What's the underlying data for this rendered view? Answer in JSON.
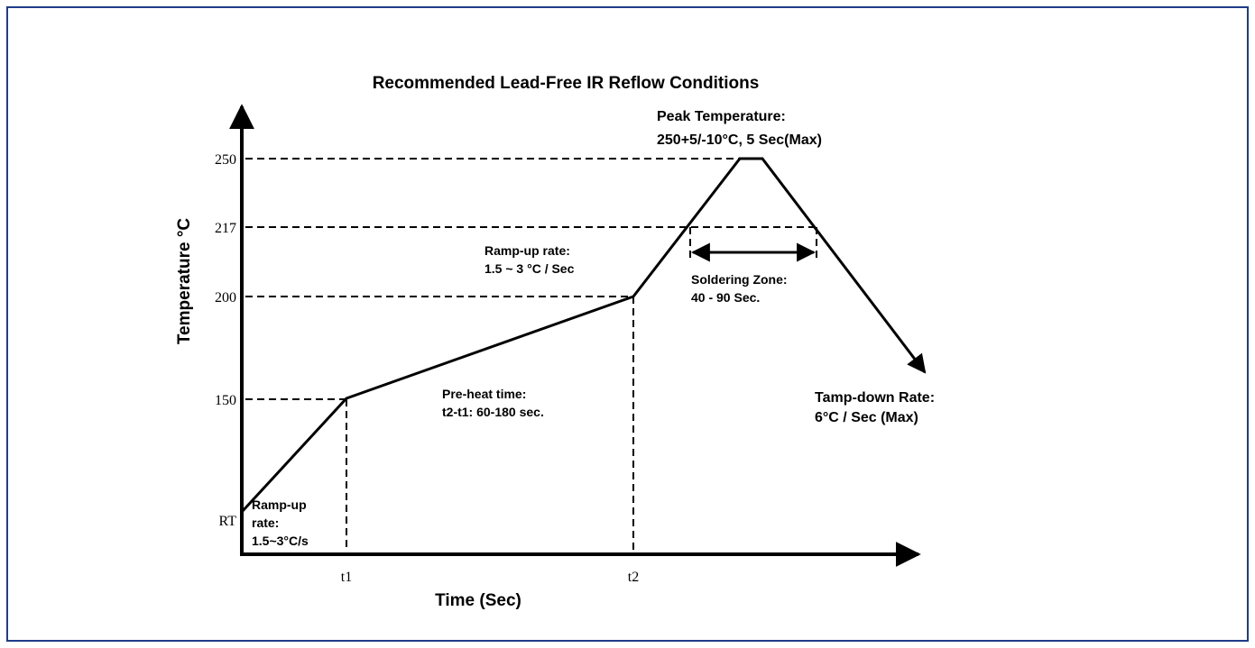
{
  "title": "Recommended Lead-Free IR Reflow Conditions",
  "axes": {
    "y_label": "Temperature °C",
    "x_label": "Time (Sec)",
    "y_ticks": [
      "250",
      "217",
      "200",
      "150",
      "RT"
    ],
    "x_ticks": [
      "t1",
      "t2"
    ]
  },
  "annotations": {
    "peak": [
      "Peak Temperature:",
      "250+5/-10°C, 5 Sec(Max)"
    ],
    "ramp_up_upper": [
      "Ramp-up rate:",
      "1.5 ~ 3 °C / Sec"
    ],
    "soldering_zone": [
      "Soldering Zone:",
      "40 - 90 Sec."
    ],
    "pre_heat": [
      "Pre-heat time:",
      "t2-t1: 60-180 sec."
    ],
    "ramp_down": [
      "Tamp-down Rate:",
      "6°C / Sec (Max)"
    ],
    "ramp_up_lower": [
      "Ramp-up",
      "rate:",
      "1.5~3°C/s"
    ]
  }
}
